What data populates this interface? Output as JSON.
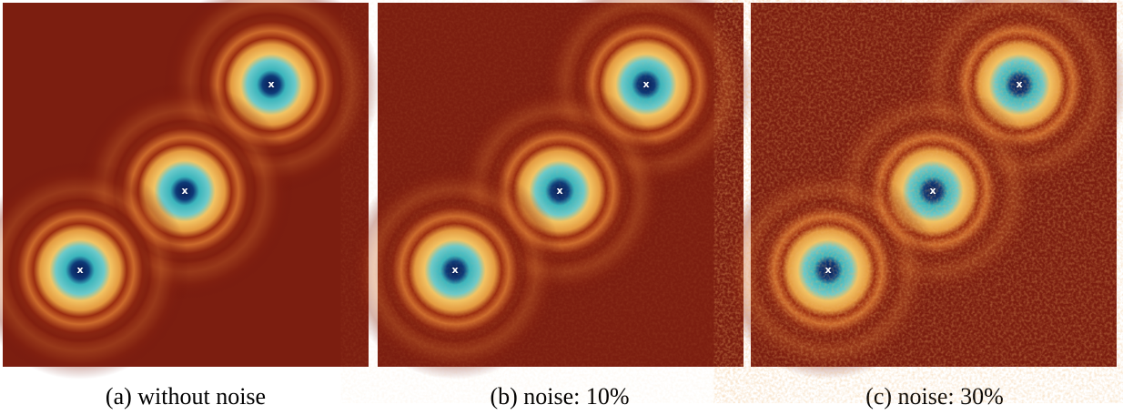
{
  "figure": {
    "panels": [
      {
        "caption": "(a) without noise",
        "markers": [
          "x",
          "x",
          "x"
        ]
      },
      {
        "caption": "(b) noise: 10%",
        "markers": [
          "x",
          "x",
          "x"
        ]
      },
      {
        "caption": "(c) noise: 30%",
        "markers": [
          "x",
          "x",
          "x"
        ]
      }
    ]
  }
}
